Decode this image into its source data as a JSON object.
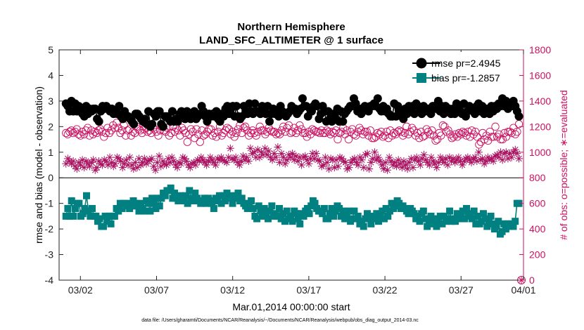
{
  "chart_data": {
    "type": "line",
    "title": "Northern Hemisphere",
    "subtitle": "LAND_SFC_ALTIMETER @ 1 surface",
    "xlabel": "Mar.01,2014 00:00:00 start",
    "ylabel_left": "rmse and bias (model - observation)",
    "ylabel_right": "# of obs: o=possible; ∗=evaluated",
    "x_range": [
      0.6,
      31.1
    ],
    "x_ticks": [
      {
        "value": 2,
        "label": "03/02"
      },
      {
        "value": 7,
        "label": "03/07"
      },
      {
        "value": 12,
        "label": "03/12"
      },
      {
        "value": 17,
        "label": "03/17"
      },
      {
        "value": 22,
        "label": "03/22"
      },
      {
        "value": 27,
        "label": "03/27"
      },
      {
        "value": 32,
        "label": "04/01"
      }
    ],
    "ylim_left": [
      -4,
      5
    ],
    "yticks_left": [
      -4,
      -3,
      -2,
      -1,
      0,
      1,
      2,
      3,
      4,
      5
    ],
    "ylim_right": [
      0,
      1800
    ],
    "yticks_right": [
      0,
      200,
      400,
      600,
      800,
      1000,
      1200,
      1400,
      1600,
      1800
    ],
    "legend": {
      "position": "top-right"
    },
    "series": [
      {
        "name": "rmse pr=2.4945",
        "axis": "left",
        "color": "#000000",
        "marker": "filled-circle",
        "values": [
          2.9,
          2.8,
          2.6,
          3.0,
          2.6,
          2.9,
          2.6,
          2.8,
          2.6,
          2.5,
          2.4,
          2.8,
          2.5,
          2.7,
          2.6,
          2.7,
          2.7,
          2.3,
          2.2,
          2.6,
          2.8,
          2.7,
          2.8,
          2.7,
          2.6,
          2.7,
          2.5,
          2.6,
          2.5,
          2.8,
          2.4,
          2.3,
          2.6,
          2.4,
          2.4,
          2.3,
          2.2,
          2.1,
          2.5,
          2.5,
          2.4,
          2.3,
          2.2,
          2.3,
          2.1,
          2.6,
          2.0,
          2.1,
          2.5,
          2.4,
          2.6,
          2.6,
          2.1,
          2.0,
          2.4,
          2.4,
          2.3,
          2.2,
          2.6,
          2.2,
          2.3,
          2.2,
          2.5,
          2.6,
          2.4,
          2.3,
          2.6,
          2.5,
          2.3,
          2.5,
          2.6,
          2.3,
          2.4,
          2.5,
          2.8,
          2.6,
          2.4,
          2.2,
          2.5,
          2.4,
          2.5,
          2.4,
          2.6,
          2.3,
          2.2,
          2.5,
          2.4,
          2.7,
          2.8,
          2.5,
          2.7,
          2.8,
          2.4,
          2.8,
          2.4,
          2.3,
          2.4,
          2.8,
          2.6,
          2.5,
          2.9,
          2.6,
          2.5,
          2.9,
          2.6,
          2.6,
          2.5,
          2.8,
          2.6,
          2.5,
          2.8,
          2.2,
          2.5,
          2.7,
          2.5,
          2.6,
          2.4,
          2.8,
          2.6,
          2.5,
          2.4,
          2.5,
          2.6,
          2.8,
          2.7,
          2.7,
          2.5,
          2.6,
          2.7,
          3.1,
          2.8,
          2.8,
          2.4,
          2.7,
          2.6,
          2.8,
          2.9,
          2.8,
          2.3,
          2.5,
          2.8,
          2.6,
          2.2,
          2.6,
          2.3,
          2.2,
          2.5,
          2.3,
          2.7,
          2.2,
          2.6,
          2.2,
          2.5,
          2.6,
          2.7,
          2.8,
          2.8,
          3.1,
          2.9,
          2.6,
          2.7,
          2.5,
          2.6,
          2.8,
          2.7,
          2.6,
          2.8,
          2.8,
          2.9,
          2.8,
          3.1,
          2.7,
          2.6,
          2.8,
          2.6,
          2.7,
          2.5,
          2.4,
          2.4,
          2.9,
          2.4,
          2.8,
          2.6,
          2.4,
          2.3,
          2.7,
          2.5,
          2.8,
          2.6,
          2.8,
          2.5,
          2.9,
          2.8,
          2.6,
          2.5,
          2.8,
          2.6,
          2.7,
          2.7,
          2.5,
          2.8,
          2.8,
          2.7,
          3.0,
          2.6,
          2.8,
          2.5,
          2.8,
          2.6,
          2.7,
          2.5,
          2.7,
          2.5,
          2.9,
          2.8,
          2.6,
          2.5,
          2.9,
          2.4,
          2.6,
          2.8,
          2.7,
          2.6,
          2.5,
          2.8,
          2.9,
          2.6,
          2.8,
          2.5,
          2.7,
          2.6,
          2.5,
          2.8,
          2.6,
          2.8,
          2.7,
          2.9,
          2.8,
          3.1,
          2.8,
          3.0,
          2.7,
          2.8,
          2.8,
          3.0,
          2.8,
          2.6,
          2.4
        ]
      },
      {
        "name": "bias pr=-1.2857",
        "axis": "left",
        "color": "#008080",
        "marker": "filled-square",
        "values": [
          -1.5,
          -1.2,
          -1.5,
          -0.9,
          -1.5,
          -1.2,
          -1.0,
          -1.0,
          -1.5,
          -1.4,
          -1.2,
          -0.7,
          -1.3,
          -1.5,
          -1.2,
          -1.5,
          -1.5,
          -1.7,
          -1.6,
          -1.9,
          -1.9,
          -1.5,
          -1.7,
          -1.5,
          -1.8,
          -1.5,
          -1.5,
          -1.2,
          -1.3,
          -1.0,
          -1.2,
          -1.0,
          -1.1,
          -1.0,
          -1.2,
          -1.1,
          -0.9,
          -1.0,
          -1.1,
          -1.3,
          -1.0,
          -1.2,
          -1.3,
          -0.9,
          -1.0,
          -1.3,
          -0.8,
          -1.0,
          -1.2,
          -0.8,
          -1.1,
          -0.8,
          -0.6,
          -0.7,
          -0.5,
          -0.5,
          -0.4,
          -0.8,
          -0.6,
          -0.8,
          -0.9,
          -0.7,
          -0.9,
          -0.8,
          -0.7,
          -1.0,
          -0.5,
          -0.8,
          -0.9,
          -0.6,
          -0.8,
          -0.9,
          -1.0,
          -0.9,
          -0.8,
          -1.0,
          -0.8,
          -0.9,
          -1.0,
          -1.2,
          -0.8,
          -0.9,
          -0.7,
          -1.0,
          -0.7,
          -0.9,
          -0.6,
          -0.8,
          -0.7,
          -1.0,
          -0.8,
          -0.7,
          -0.6,
          -0.9,
          -0.8,
          -1.0,
          -1.1,
          -1.2,
          -1.0,
          -0.9,
          -1.2,
          -1.5,
          -1.6,
          -1.1,
          -1.3,
          -1.5,
          -1.2,
          -1.4,
          -1.6,
          -1.3,
          -1.1,
          -1.5,
          -1.4,
          -1.5,
          -1.2,
          -1.6,
          -1.4,
          -1.7,
          -1.3,
          -1.6,
          -1.5,
          -1.7,
          -1.3,
          -1.4,
          -1.6,
          -1.8,
          -1.4,
          -1.5,
          -1.3,
          -1.2,
          -1.4,
          -1.1,
          -0.9,
          -1.0,
          -1.2,
          -1.3,
          -1.3,
          -1.4,
          -1.2,
          -1.6,
          -1.6,
          -1.4,
          -1.2,
          -1.5,
          -1.3,
          -1.1,
          -1.2,
          -1.5,
          -1.3,
          -1.6,
          -1.5,
          -1.3,
          -1.7,
          -1.6,
          -1.3,
          -1.6,
          -1.5,
          -1.8,
          -1.7,
          -1.9,
          -1.6,
          -1.4,
          -1.6,
          -1.8,
          -1.5,
          -1.6,
          -1.4,
          -1.7,
          -1.5,
          -1.3,
          -1.6,
          -1.2,
          -1.5,
          -1.3,
          -1.0,
          -1.2,
          -1.1,
          -0.9,
          -1.0,
          -1.2,
          -1.1,
          -1.2,
          -1.3,
          -1.4,
          -1.2,
          -1.3,
          -1.4,
          -1.6,
          -1.5,
          -1.7,
          -1.4,
          -1.3,
          -1.6,
          -1.9,
          -1.7,
          -1.5,
          -1.8,
          -1.6,
          -1.9,
          -1.7,
          -1.5,
          -1.8,
          -1.5,
          -1.7,
          -1.6,
          -1.3,
          -1.7,
          -1.6,
          -1.7,
          -1.4,
          -1.6,
          -1.5,
          -1.3,
          -1.6,
          -1.2,
          -1.4,
          -1.5,
          -1.6,
          -1.3,
          -1.8,
          -1.5,
          -1.8,
          -1.7,
          -1.4,
          -1.6,
          -1.9,
          -1.7,
          -1.5,
          -1.8,
          -2.0,
          -1.9,
          -1.7,
          -2.2,
          -2.1,
          -1.8,
          -2.0,
          -1.8,
          -1.9,
          -1.8,
          -1.9,
          -1.7,
          -1.0,
          -1.0
        ]
      },
      {
        "name": "possible",
        "axis": "right",
        "color": "#cc1060",
        "marker": "open-circle",
        "values": [
          1150,
          1140,
          1160,
          1170,
          1150,
          1160,
          1180,
          1140,
          1130,
          1160,
          1140,
          1170,
          1190,
          1130,
          1170,
          1140,
          1160,
          1150,
          1170,
          1180,
          1160,
          1120,
          1150,
          1190,
          1150,
          1170,
          1210,
          1190,
          1230,
          1190,
          1150,
          1170,
          1210,
          1130,
          1170,
          1180,
          1130,
          1160,
          1150,
          1200,
          1180,
          1170,
          1150,
          1180,
          1190,
          1160,
          1170,
          1150,
          1190,
          1180,
          1160,
          1130,
          1170,
          1200,
          1170,
          1160,
          1190,
          1130,
          1150,
          1200,
          1160,
          1190,
          1170,
          1130,
          1190,
          1170,
          1150,
          1080,
          1140,
          1180,
          1160,
          1110,
          1180,
          1140,
          1080,
          1170,
          1130,
          1140,
          1160,
          1180,
          1180,
          1130,
          1150,
          1120,
          1160,
          1200,
          1130,
          1150,
          1170,
          1190,
          1180,
          1140,
          1160,
          1120,
          1150,
          1180,
          1210,
          1150,
          1190,
          1200,
          1170,
          1130,
          1150,
          1170,
          1150,
          1130,
          1160,
          1200,
          1170,
          1170,
          1140,
          1160,
          1190,
          1170,
          1160,
          1160,
          1140,
          1150,
          1140,
          1170,
          1200,
          1160,
          1190,
          1210,
          1150,
          1160,
          1190,
          1150,
          1170,
          1210,
          1180,
          1150,
          1150,
          1120,
          1160,
          1140,
          1180,
          1170,
          1160,
          1160,
          1150,
          1170,
          1150,
          1150,
          1170,
          1160,
          1140,
          1160,
          1150,
          1170,
          1100,
          1150,
          1160,
          1190,
          1140,
          1170,
          1100,
          1160,
          1180,
          1140,
          1130,
          1160,
          1190,
          1170,
          1140,
          1160,
          1160,
          1130,
          1170,
          1110,
          1110,
          1120,
          1150,
          1140,
          1160,
          1120,
          1130,
          1160,
          1110,
          1170,
          1130,
          1150,
          1140,
          1160,
          1170,
          1160,
          1130,
          1150,
          1200,
          1140,
          1160,
          1190,
          1170,
          1130,
          1150,
          1110,
          1160,
          1120,
          1130,
          1180,
          1160,
          1140,
          1170,
          1130,
          1090,
          1100,
          1150,
          1130,
          1210,
          1200,
          1160,
          1170,
          1140,
          1110,
          1120,
          1140,
          1120,
          1150,
          1140,
          1160,
          1150,
          1130,
          1160,
          1120,
          1170,
          1140,
          1160,
          1120,
          1060,
          1080,
          1150,
          1100,
          1130,
          1090,
          1160,
          1120,
          1120,
          1200,
          1120,
          1140,
          1100,
          1100,
          1150,
          1120,
          1160,
          1160,
          1150,
          1190,
          1140,
          1160,
          1220
        ]
      },
      {
        "name": "evaluated",
        "axis": "right",
        "color": "#aa1060",
        "marker": "asterisk",
        "values": [
          910,
          950,
          930,
          910,
          930,
          890,
          870,
          920,
          900,
          940,
          880,
          930,
          910,
          890,
          920,
          940,
          860,
          880,
          930,
          910,
          900,
          940,
          930,
          900,
          960,
          920,
          890,
          910,
          960,
          950,
          930,
          880,
          910,
          940,
          900,
          960,
          900,
          870,
          920,
          880,
          950,
          900,
          920,
          950,
          910,
          930,
          940,
          950,
          890,
          860,
          920,
          970,
          890,
          930,
          910,
          900,
          950,
          920,
          960,
          930,
          900,
          880,
          920,
          910,
          960,
          950,
          930,
          900,
          880,
          910,
          920,
          900,
          940,
          930,
          960,
          940,
          920,
          900,
          930,
          960,
          940,
          920,
          900,
          950,
          940,
          960,
          940,
          930,
          920,
          960,
          1030,
          950,
          940,
          960,
          920,
          900,
          930,
          970,
          940,
          960,
          930,
          1030,
          990,
          1000,
          960,
          1020,
          960,
          1000,
          980,
          1030,
          980,
          1010,
          960,
          940,
          990,
          960,
          1040,
          920,
          990,
          960,
          910,
          940,
          980,
          960,
          990,
          940,
          970,
          930,
          960,
          900,
          960,
          970,
          940,
          910,
          950,
          990,
          950,
          990,
          940,
          930,
          890,
          900,
          960,
          920,
          870,
          950,
          940,
          880,
          940,
          890,
          960,
          950,
          930,
          920,
          870,
          880,
          920,
          940,
          950,
          920,
          900,
          960,
          940,
          880,
          980,
          990,
          870,
          920,
          950,
          1000,
          940,
          960,
          930,
          900,
          870,
          920,
          860,
          960,
          930,
          900,
          920,
          890,
          940,
          910,
          880,
          930,
          900,
          870,
          920,
          950,
          880,
          940,
          960,
          930,
          900,
          950,
          980,
          940,
          920,
          900,
          960,
          930,
          910,
          880,
          920,
          960,
          940,
          920,
          950,
          900,
          960,
          930,
          950,
          920,
          940,
          960,
          930,
          900,
          930,
          950,
          960,
          940,
          920,
          950,
          960,
          930,
          1000,
          940,
          950,
          910,
          930,
          960,
          940,
          950,
          930,
          970,
          980,
          960,
          1000,
          940,
          990,
          1000,
          950,
          990,
          960,
          1000,
          1020,
          990,
          950
        ]
      }
    ],
    "annotations": [
      {
        "text": "data file: /Users/gharamti/Documents/NCAR/Reanalysis/~/Documents/NCAR/Reanalysis/webpub/obs_diag_output_2014-03.nc"
      }
    ]
  },
  "colors": {
    "rmse": "#000000",
    "bias": "#008080",
    "obs": "#cc1060",
    "right_axis": "#cc1060"
  }
}
